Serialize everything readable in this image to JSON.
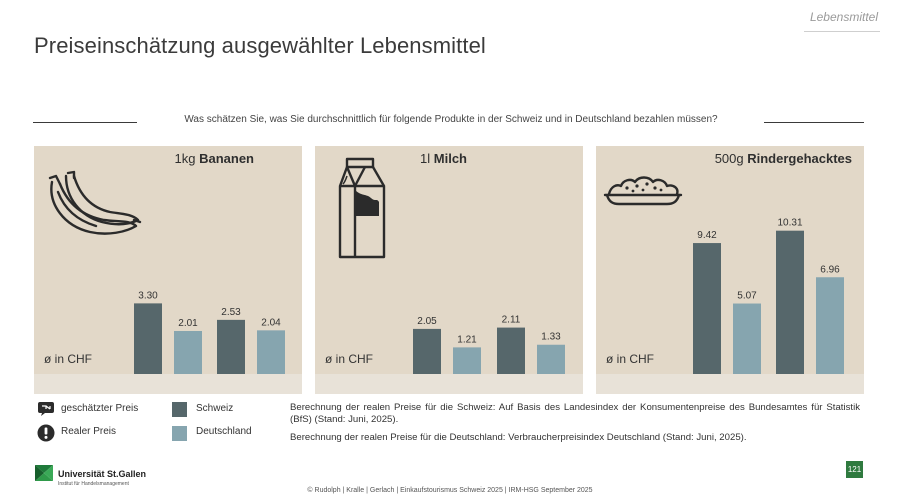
{
  "header": {
    "section_tag": "Lebensmittel",
    "title": "Preiseinschätzung ausgewählter Lebensmittel",
    "question": "Was schätzen Sie, was Sie durchschnittlich für folgende Produkte in der Schweiz und in Deutschland bezahlen müssen?"
  },
  "chart_data": [
    {
      "type": "bar",
      "title_qty": "1kg",
      "title_name": "Bananen",
      "ylabel": "ø in CHF",
      "categories": [
        "geschätzter Preis",
        "Realer Preis"
      ],
      "series": [
        {
          "name": "Schweiz",
          "values": [
            3.3,
            2.53
          ],
          "labels": [
            "3.30",
            "2.53"
          ]
        },
        {
          "name": "Deutschland",
          "values": [
            2.01,
            2.04
          ],
          "labels": [
            "2.01",
            "2.04"
          ]
        }
      ]
    },
    {
      "type": "bar",
      "title_qty": "1l",
      "title_name": "Milch",
      "ylabel": "ø in CHF",
      "categories": [
        "geschätzter Preis",
        "Realer Preis"
      ],
      "series": [
        {
          "name": "Schweiz",
          "values": [
            2.05,
            2.11
          ],
          "labels": [
            "2.05",
            "2.11"
          ]
        },
        {
          "name": "Deutschland",
          "values": [
            1.21,
            1.33
          ],
          "labels": [
            "1.21",
            "1.33"
          ]
        }
      ]
    },
    {
      "type": "bar",
      "title_qty": "500g",
      "title_name": "Rindergehacktes",
      "ylabel": "ø in CHF",
      "categories": [
        "geschätzter Preis",
        "Realer Preis"
      ],
      "series": [
        {
          "name": "Schweiz",
          "values": [
            9.42,
            10.31
          ],
          "labels": [
            "9.42",
            "10.31"
          ]
        },
        {
          "name": "Deutschland",
          "values": [
            5.07,
            6.96
          ],
          "labels": [
            "5.07",
            "6.96"
          ]
        }
      ]
    }
  ],
  "colors": {
    "schweiz": "#56676b",
    "deutschland": "#86a5af",
    "panel_bg": "#e2d8c8",
    "strip_bg": "#e8e2d8",
    "icon": "#2b2b2b"
  },
  "legend": {
    "estimated": "geschätzter Preis",
    "real": "Realer Preis",
    "schweiz": "Schweiz",
    "deutschland": "Deutschland"
  },
  "notes": {
    "ch": "Berechnung der realen Preise für die Schweiz: Auf Basis des Landesindex der Konsumentenpreise des Bundesamtes für Statistik (BfS) (Stand: Juni, 2025).",
    "de": "Berechnung der realen Preise für die Deutschland: Verbraucherpreisindex Deutschland (Stand: Juni, 2025)."
  },
  "footer": {
    "logo": "Universität St.Gallen",
    "logo_sub": "Institut für Handelsmanagement",
    "credit": "© Rudolph | Kralle | Gerlach | Einkaufstourismus Schweiz 2025 | IRM-HSG September 2025",
    "page": "121"
  }
}
